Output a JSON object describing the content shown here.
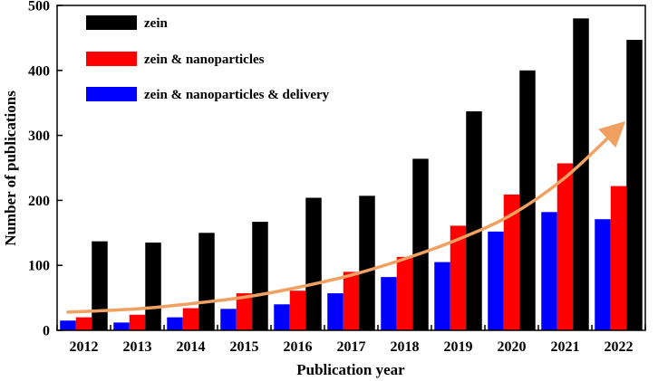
{
  "chart_data": {
    "type": "bar",
    "xlabel": "Publication year",
    "ylabel": "Number of publications",
    "ylim": [
      0,
      500
    ],
    "yticks": [
      0,
      100,
      200,
      300,
      400,
      500
    ],
    "categories": [
      "2012",
      "2013",
      "2014",
      "2015",
      "2016",
      "2017",
      "2018",
      "2019",
      "2020",
      "2021",
      "2022"
    ],
    "series": [
      {
        "name": "zein & nanoparticles & delivery",
        "color": "#0000ff",
        "values": [
          15,
          12,
          20,
          33,
          40,
          57,
          82,
          105,
          152,
          182,
          171
        ]
      },
      {
        "name": "zein & nanoparticles",
        "color": "#ff0000",
        "values": [
          20,
          24,
          34,
          57,
          61,
          90,
          113,
          161,
          209,
          257,
          222
        ]
      },
      {
        "name": "zein",
        "color": "#000000",
        "values": [
          137,
          135,
          150,
          167,
          204,
          207,
          264,
          337,
          400,
          480,
          447
        ]
      }
    ],
    "legend": {
      "position": "top-left",
      "order": [
        "zein",
        "zein & nanoparticles",
        "zein & nanoparticles & delivery"
      ]
    },
    "trend_curve": {
      "color": "#f0a060",
      "values": [
        28,
        33,
        41,
        51,
        66,
        85,
        110,
        140,
        178,
        235,
        312
      ]
    }
  }
}
